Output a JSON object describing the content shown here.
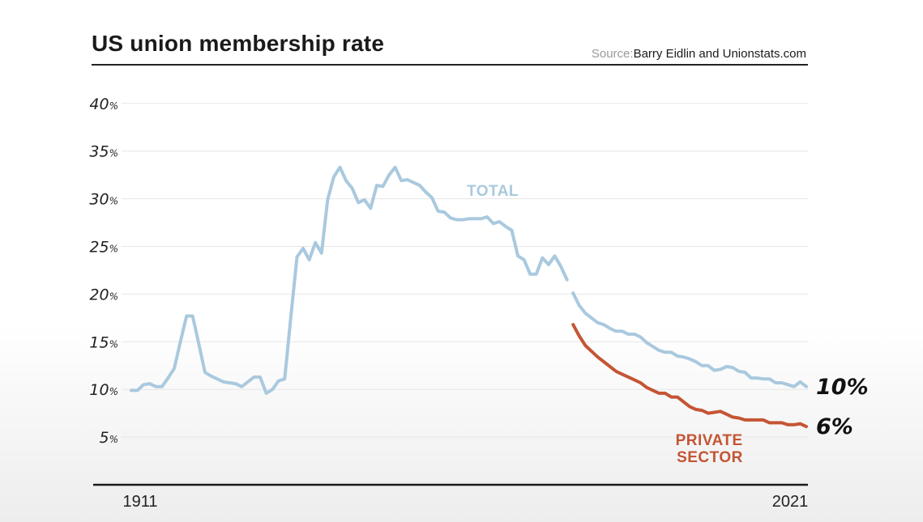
{
  "header": {
    "title": "US union membership rate",
    "source_label": "Source:",
    "source_text": "Barry Eidlin and Unionstats.com"
  },
  "chart_data": {
    "type": "line",
    "title": "US union membership rate",
    "xlabel": "",
    "ylabel": "",
    "xlim": [
      1911,
      2021
    ],
    "ylim": [
      0,
      40
    ],
    "y_ticks": [
      5,
      10,
      15,
      20,
      25,
      30,
      35,
      40
    ],
    "y_tick_suffix": "%",
    "x_tick_labels": [
      "1911",
      "2021"
    ],
    "grid": true,
    "series": [
      {
        "name": "TOTAL",
        "color": "#a9c9de",
        "segments": [
          {
            "x": [
              1911,
              1912,
              1913,
              1914,
              1915,
              1916,
              1917,
              1918,
              1919,
              1920,
              1921,
              1922,
              1923,
              1924,
              1925,
              1926,
              1927,
              1928,
              1929,
              1930,
              1931,
              1932,
              1933,
              1934,
              1935,
              1936,
              1937,
              1938,
              1939,
              1940,
              1941,
              1942,
              1943,
              1944,
              1945,
              1946,
              1947,
              1948,
              1949,
              1950,
              1951,
              1952,
              1953,
              1954,
              1955,
              1956,
              1957,
              1958,
              1959,
              1960,
              1961,
              1962,
              1963,
              1964,
              1965,
              1966,
              1967,
              1968,
              1969,
              1970,
              1971,
              1972,
              1973,
              1974,
              1975,
              1976,
              1977,
              1978,
              1979,
              1980,
              1981,
              1982
            ],
            "y": [
              9.9,
              9.9,
              10.5,
              10.6,
              10.3,
              10.3,
              11.2,
              12.2,
              15.0,
              17.7,
              17.7,
              14.8,
              11.8,
              11.4,
              11.1,
              10.8,
              10.7,
              10.6,
              10.3,
              10.8,
              11.3,
              11.3,
              9.6,
              10.0,
              10.9,
              11.1,
              17.6,
              23.9,
              24.8,
              23.6,
              25.4,
              24.3,
              29.9,
              32.3,
              33.3,
              31.9,
              31.1,
              29.6,
              29.9,
              29.0,
              31.4,
              31.3,
              32.5,
              33.3,
              31.9,
              32.0,
              31.7,
              31.4,
              30.7,
              30.1,
              28.7,
              28.6,
              28.0,
              27.8,
              27.8,
              27.9,
              27.9,
              27.9,
              28.1,
              27.4,
              27.6,
              27.1,
              26.7,
              24.0,
              23.6,
              22.1,
              22.1,
              23.8,
              23.1,
              24.0,
              22.9,
              21.5
            ]
          },
          {
            "x": [
              1983,
              1984,
              1985,
              1986,
              1987,
              1988,
              1989,
              1990,
              1991,
              1992,
              1993,
              1994,
              1995,
              1996,
              1997,
              1998,
              1999,
              2000,
              2001,
              2002,
              2003,
              2004,
              2005,
              2006,
              2007,
              2008,
              2009,
              2010,
              2011,
              2012,
              2013,
              2014,
              2015,
              2016,
              2017,
              2018,
              2019,
              2020,
              2021
            ],
            "y": [
              20.1,
              18.8,
              18.0,
              17.5,
              17.0,
              16.8,
              16.4,
              16.1,
              16.1,
              15.8,
              15.8,
              15.5,
              14.9,
              14.5,
              14.1,
              13.9,
              13.9,
              13.5,
              13.4,
              13.2,
              12.9,
              12.5,
              12.5,
              12.0,
              12.1,
              12.4,
              12.3,
              11.9,
              11.8,
              11.2,
              11.2,
              11.1,
              11.1,
              10.7,
              10.7,
              10.5,
              10.3,
              10.8,
              10.3
            ]
          }
        ],
        "end_label": "10%"
      },
      {
        "name": "PRIVATE\nSECTOR",
        "name_lines": [
          "PRIVATE",
          "SECTOR"
        ],
        "color": "#c45534",
        "segments": [
          {
            "x": [
              1983,
              1984,
              1985,
              1986,
              1987,
              1988,
              1989,
              1990,
              1991,
              1992,
              1993,
              1994,
              1995,
              1996,
              1997,
              1998,
              1999,
              2000,
              2001,
              2002,
              2003,
              2004,
              2005,
              2006,
              2007,
              2008,
              2009,
              2010,
              2011,
              2012,
              2013,
              2014,
              2015,
              2016,
              2017,
              2018,
              2019,
              2020,
              2021
            ],
            "y": [
              16.8,
              15.6,
              14.6,
              14.0,
              13.4,
              12.9,
              12.4,
              11.9,
              11.6,
              11.3,
              11.0,
              10.7,
              10.2,
              9.9,
              9.6,
              9.6,
              9.2,
              9.2,
              8.7,
              8.2,
              7.9,
              7.8,
              7.5,
              7.6,
              7.7,
              7.4,
              7.1,
              7.0,
              6.8,
              6.8,
              6.8,
              6.8,
              6.5,
              6.5,
              6.5,
              6.3,
              6.3,
              6.4,
              6.1
            ]
          }
        ],
        "end_label": "6%"
      }
    ]
  }
}
